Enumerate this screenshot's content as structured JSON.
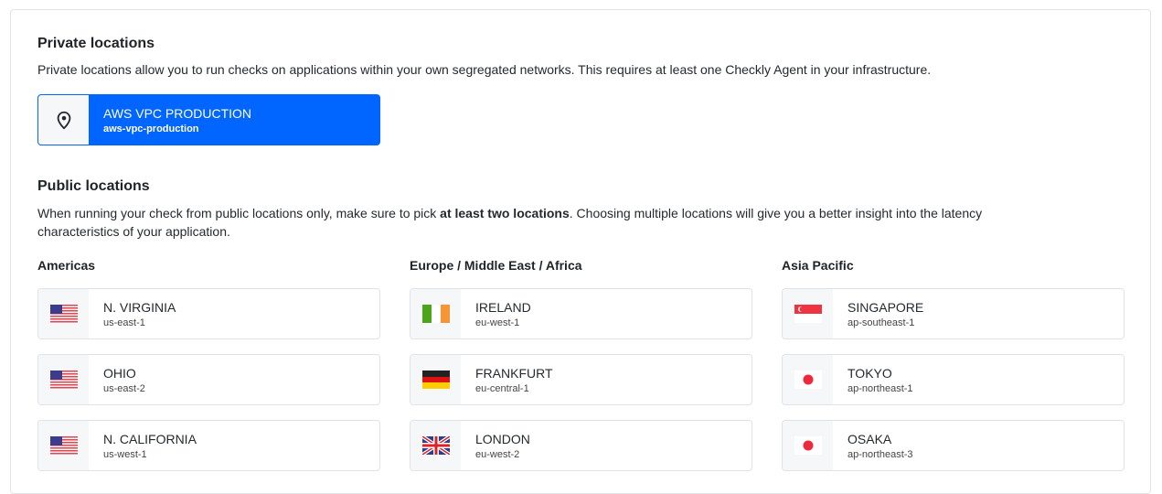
{
  "private": {
    "title": "Private locations",
    "description": "Private locations allow you to run checks on applications within your own segregated networks. This requires at least one Checkly Agent in your infrastructure.",
    "locations": [
      {
        "name": "AWS VPC PRODUCTION",
        "slug": "aws-vpc-production",
        "icon": "map-pin-icon",
        "selected": true
      }
    ]
  },
  "public": {
    "title": "Public locations",
    "description_pre": "When running your check from public locations only, make sure to pick ",
    "description_bold": "at least two locations",
    "description_post": ". Choosing multiple locations will give you a better insight into the latency characteristics of your application.",
    "regions": [
      {
        "name": "Americas",
        "locations": [
          {
            "name": "N. VIRGINIA",
            "code": "us-east-1",
            "flag": "us"
          },
          {
            "name": "OHIO",
            "code": "us-east-2",
            "flag": "us"
          },
          {
            "name": "N. CALIFORNIA",
            "code": "us-west-1",
            "flag": "us"
          }
        ]
      },
      {
        "name": "Europe / Middle East / Africa",
        "locations": [
          {
            "name": "IRELAND",
            "code": "eu-west-1",
            "flag": "ie"
          },
          {
            "name": "FRANKFURT",
            "code": "eu-central-1",
            "flag": "de"
          },
          {
            "name": "LONDON",
            "code": "eu-west-2",
            "flag": "gb"
          }
        ]
      },
      {
        "name": "Asia Pacific",
        "locations": [
          {
            "name": "SINGAPORE",
            "code": "ap-southeast-1",
            "flag": "sg"
          },
          {
            "name": "TOKYO",
            "code": "ap-northeast-1",
            "flag": "jp"
          },
          {
            "name": "OSAKA",
            "code": "ap-northeast-3",
            "flag": "jp"
          }
        ]
      }
    ]
  },
  "colors": {
    "accent": "#0066ff"
  }
}
